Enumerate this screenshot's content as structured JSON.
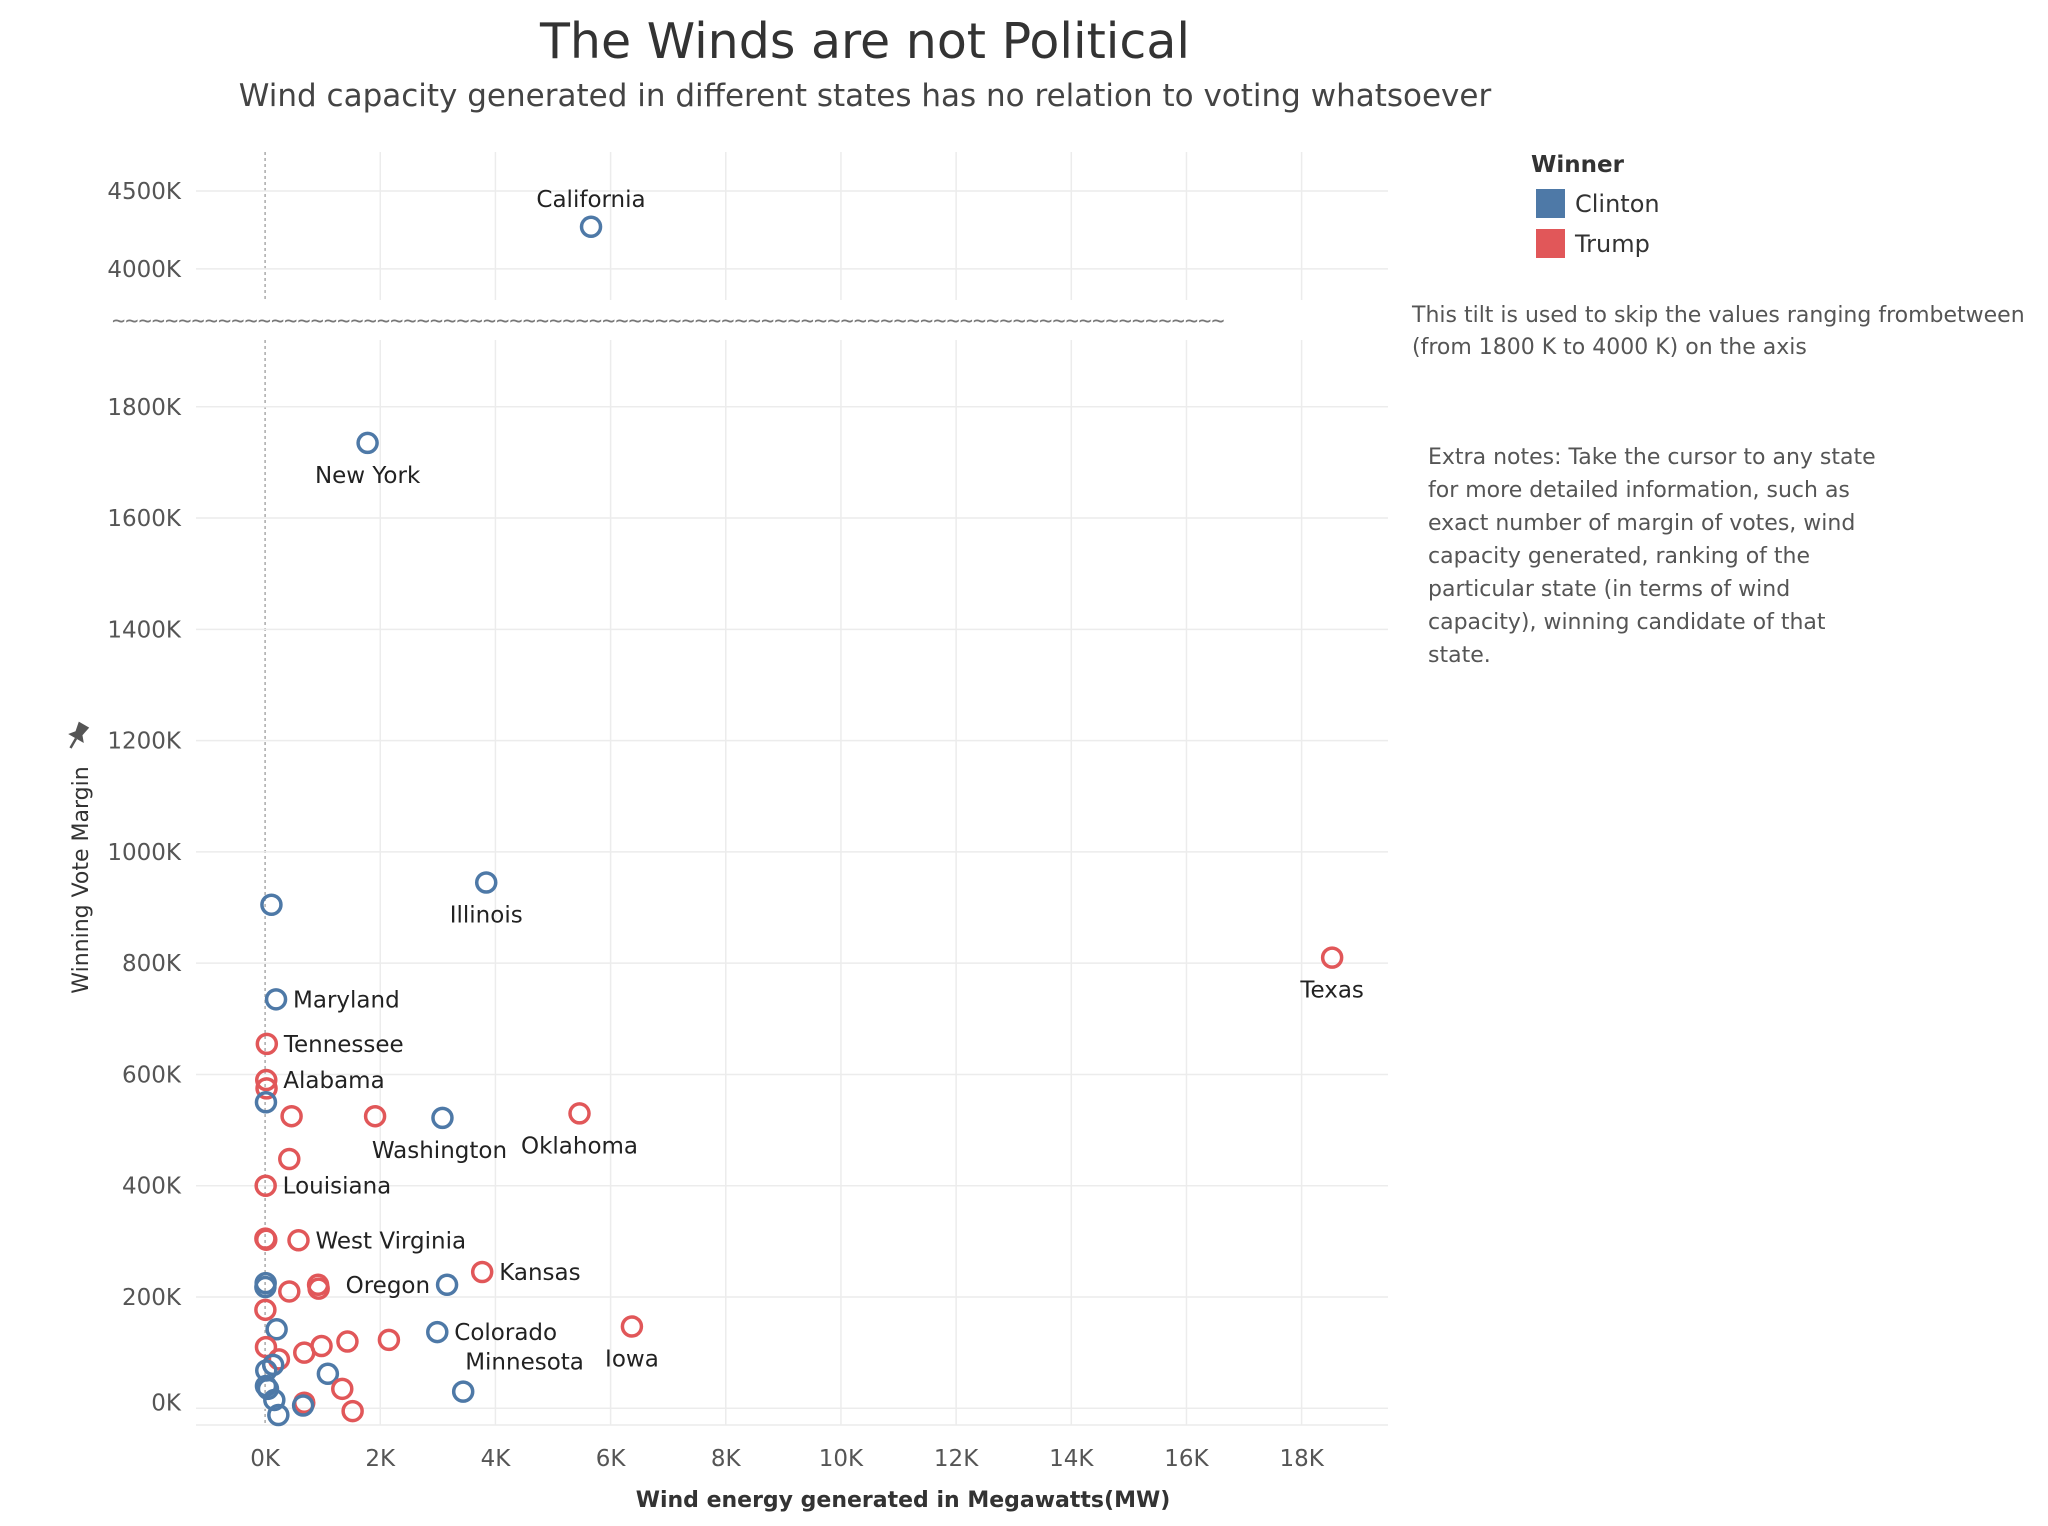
{
  "title": "The Winds are not Political",
  "subtitle": "Wind capacity generated in different states has no relation to voting whatsoever",
  "axis_break_marker": "~~~~~~~~~~~~~~~~~~~~~~~~~~~~~~~~~~~~~~~~~~~~~~~~~~~~~~~~~~~~~~~~~~~~~~~~~~~~~~~~~~~~",
  "pin_icon": "pin-icon",
  "legend": {
    "title": "Winner",
    "items": [
      {
        "label": "Clinton",
        "color": "#4e79a7"
      },
      {
        "label": "Trump",
        "color": "#e15759"
      }
    ]
  },
  "notes": {
    "tilt": [
      "This tilt is used to skip the values ranging frombetween",
      "(from 1800 K to 4000 K) on the axis"
    ],
    "extra": [
      "Extra notes: Take the cursor to any state",
      "for more detailed information, such as",
      "exact number of margin of votes, wind",
      "capacity generated, ranking of the",
      "particular state (in terms of wind",
      "capacity), winning candidate of that",
      "state."
    ]
  },
  "chart_data": {
    "type": "scatter",
    "title": "The Winds are not Political",
    "subtitle": "Wind capacity generated in different states has no relation to voting whatsoever",
    "xlabel": "Wind energy generated in Megawatts(MW)",
    "ylabel": "Winning Vote Margin",
    "x_ticks": [
      "0K",
      "2K",
      "4K",
      "6K",
      "8K",
      "10K",
      "12K",
      "14K",
      "16K",
      "18K"
    ],
    "x_tick_values": [
      0,
      2000,
      4000,
      6000,
      8000,
      10000,
      12000,
      14000,
      16000,
      18000
    ],
    "xlim": [
      -1200,
      19500
    ],
    "upper_panel": {
      "ylim": [
        3800000,
        4750000
      ],
      "y_ticks": [
        "4000K",
        "4500K"
      ],
      "y_tick_values": [
        4000000,
        4500000
      ]
    },
    "lower_panel": {
      "ylim": [
        -30000,
        1920000
      ],
      "y_ticks": [
        "0K",
        "200K",
        "400K",
        "600K",
        "800K",
        "1000K",
        "1200K",
        "1400K",
        "1600K",
        "1800K"
      ],
      "y_tick_values": [
        0,
        200000,
        400000,
        600000,
        800000,
        1000000,
        1200000,
        1400000,
        1600000,
        1800000
      ]
    },
    "grid": true,
    "legend_position": "top-right",
    "series": [
      {
        "name": "Clinton",
        "color": "#4e79a7"
      },
      {
        "name": "Trump",
        "color": "#e15759"
      }
    ],
    "points": [
      {
        "winner": "Clinton",
        "x": 5660,
        "y": 4270000,
        "label": "California",
        "label_pos": "above"
      },
      {
        "winner": "Clinton",
        "x": 1780,
        "y": 1735000,
        "label": "New York",
        "label_pos": "below"
      },
      {
        "winner": "Clinton",
        "x": 3840,
        "y": 945000,
        "label": "Illinois",
        "label_pos": "below"
      },
      {
        "winner": "Clinton",
        "x": 110,
        "y": 905000,
        "label": "",
        "label_pos": ""
      },
      {
        "winner": "Trump",
        "x": 18530,
        "y": 810000,
        "label": "Texas",
        "label_pos": "below"
      },
      {
        "winner": "Clinton",
        "x": 190,
        "y": 735000,
        "label": "Maryland",
        "label_pos": "right"
      },
      {
        "winner": "Trump",
        "x": 30,
        "y": 655000,
        "label": "Tennessee",
        "label_pos": "right"
      },
      {
        "winner": "Trump",
        "x": 20,
        "y": 590000,
        "label": "Alabama",
        "label_pos": "right"
      },
      {
        "winner": "Trump",
        "x": 25,
        "y": 575000,
        "label": "",
        "label_pos": ""
      },
      {
        "winner": "Clinton",
        "x": 15,
        "y": 550000,
        "label": "",
        "label_pos": ""
      },
      {
        "winner": "Trump",
        "x": 460,
        "y": 525000,
        "label": "",
        "label_pos": ""
      },
      {
        "winner": "Trump",
        "x": 1910,
        "y": 525000,
        "label": "",
        "label_pos": ""
      },
      {
        "winner": "Clinton",
        "x": 3080,
        "y": 522000,
        "label": "Washington",
        "label_pos": "below-left"
      },
      {
        "winner": "Trump",
        "x": 5460,
        "y": 530000,
        "label": "Oklahoma",
        "label_pos": "below"
      },
      {
        "winner": "Trump",
        "x": 420,
        "y": 448000,
        "label": "",
        "label_pos": ""
      },
      {
        "winner": "Trump",
        "x": 10,
        "y": 400000,
        "label": "Louisiana",
        "label_pos": "right"
      },
      {
        "winner": "Trump",
        "x": 5,
        "y": 305000,
        "label": "",
        "label_pos": ""
      },
      {
        "winner": "Trump",
        "x": 20,
        "y": 303000,
        "label": "",
        "label_pos": ""
      },
      {
        "winner": "Trump",
        "x": 580,
        "y": 302000,
        "label": "West Virginia",
        "label_pos": "right"
      },
      {
        "winner": "Trump",
        "x": 3770,
        "y": 245000,
        "label": "Kansas",
        "label_pos": "right"
      },
      {
        "winner": "Clinton",
        "x": 10,
        "y": 225000,
        "label": "",
        "label_pos": ""
      },
      {
        "winner": "Clinton",
        "x": 5,
        "y": 218000,
        "label": "",
        "label_pos": ""
      },
      {
        "winner": "Trump",
        "x": 420,
        "y": 210000,
        "label": "",
        "label_pos": ""
      },
      {
        "winner": "Trump",
        "x": 920,
        "y": 222000,
        "label": "",
        "label_pos": ""
      },
      {
        "winner": "Trump",
        "x": 930,
        "y": 215000,
        "label": "",
        "label_pos": ""
      },
      {
        "winner": "Clinton",
        "x": 3160,
        "y": 222000,
        "label": "Oregon",
        "label_pos": "left"
      },
      {
        "winner": "Trump",
        "x": 6370,
        "y": 147000,
        "label": "Iowa",
        "label_pos": "below"
      },
      {
        "winner": "Trump",
        "x": 5,
        "y": 177000,
        "label": "",
        "label_pos": ""
      },
      {
        "winner": "Clinton",
        "x": 200,
        "y": 142000,
        "label": "",
        "label_pos": ""
      },
      {
        "winner": "Clinton",
        "x": 2990,
        "y": 137000,
        "label": "Colorado",
        "label_pos": "right"
      },
      {
        "winner": "Trump",
        "x": 1430,
        "y": 120000,
        "label": "",
        "label_pos": ""
      },
      {
        "winner": "Trump",
        "x": 2150,
        "y": 123000,
        "label": "",
        "label_pos": ""
      },
      {
        "winner": "Trump",
        "x": 980,
        "y": 112000,
        "label": "",
        "label_pos": ""
      },
      {
        "winner": "Trump",
        "x": 15,
        "y": 110000,
        "label": "",
        "label_pos": ""
      },
      {
        "winner": "Trump",
        "x": 680,
        "y": 100000,
        "label": "",
        "label_pos": ""
      },
      {
        "winner": "Trump",
        "x": 240,
        "y": 88000,
        "label": "",
        "label_pos": ""
      },
      {
        "winner": "Clinton",
        "x": 140,
        "y": 78000,
        "label": "",
        "label_pos": ""
      },
      {
        "winner": "Clinton",
        "x": 20,
        "y": 68000,
        "label": "",
        "label_pos": ""
      },
      {
        "winner": "Clinton",
        "x": 1090,
        "y": 62000,
        "label": "",
        "label_pos": ""
      },
      {
        "winner": "Clinton",
        "x": 15,
        "y": 40000,
        "label": "",
        "label_pos": ""
      },
      {
        "winner": "Clinton",
        "x": 50,
        "y": 35000,
        "label": "",
        "label_pos": ""
      },
      {
        "winner": "Trump",
        "x": 1340,
        "y": 35000,
        "label": "",
        "label_pos": ""
      },
      {
        "winner": "Clinton",
        "x": 3440,
        "y": 30000,
        "label": "Minnesota",
        "label_pos": "above-right"
      },
      {
        "winner": "Clinton",
        "x": 160,
        "y": 15000,
        "label": "",
        "label_pos": ""
      },
      {
        "winner": "Trump",
        "x": 680,
        "y": 10000,
        "label": "",
        "label_pos": ""
      },
      {
        "winner": "Clinton",
        "x": 660,
        "y": 5000,
        "label": "",
        "label_pos": ""
      },
      {
        "winner": "Trump",
        "x": 1520,
        "y": -5000,
        "label": "",
        "label_pos": ""
      },
      {
        "winner": "Clinton",
        "x": 230,
        "y": -12000,
        "label": "",
        "label_pos": ""
      }
    ]
  }
}
